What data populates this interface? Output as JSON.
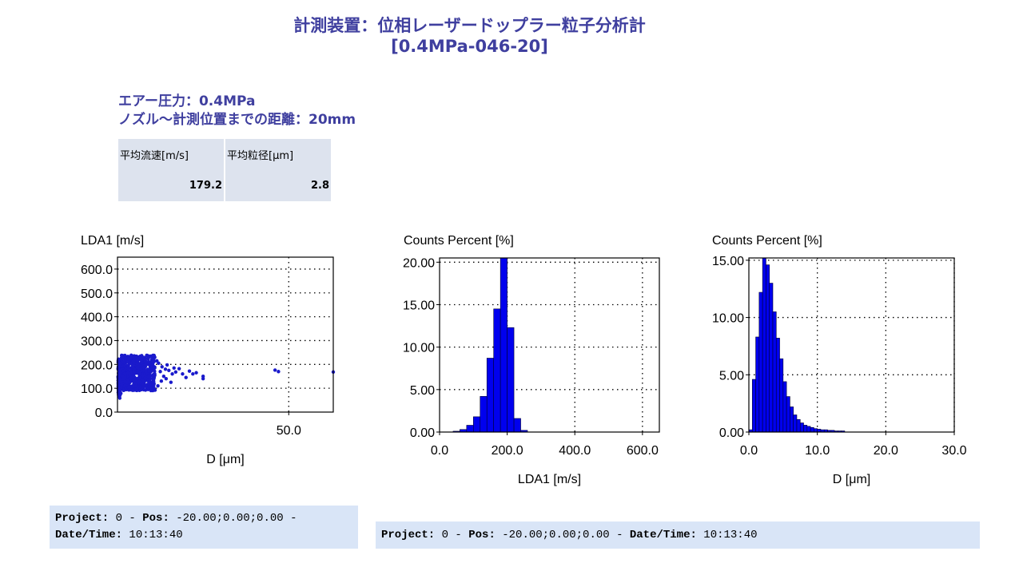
{
  "header": {
    "title_line1": "計測装置：位相レーザードップラー粒子分析計",
    "title_line2": "[0.4MPa-046-20]"
  },
  "conditions": {
    "air_pressure": "エアー圧力：0.4MPa",
    "distance": "ノズル〜計測位置までの距離：20mm"
  },
  "summary_table": {
    "headers": [
      "平均流速[m/s]",
      "平均粒径[μm]"
    ],
    "values": [
      "179.2",
      "2.8"
    ]
  },
  "chart_data": [
    {
      "type": "scatter",
      "ylabel": "LDA1 [m/s]",
      "xlabel": "D [μm]",
      "xlim": [
        0,
        63
      ],
      "ylim": [
        0,
        650
      ],
      "xticks": [
        50
      ],
      "xtick_labels": [
        "50.0"
      ],
      "yticks": [
        0,
        100,
        200,
        300,
        400,
        500,
        600
      ],
      "ytick_labels": [
        "0.0",
        "100.0",
        "200.0",
        "300.0",
        "400.0",
        "500.0",
        "600.0"
      ],
      "grid": true,
      "color": "#1a1acc",
      "cluster": {
        "x_range": [
          0.2,
          11
        ],
        "y_range": [
          60,
          240
        ]
      },
      "points": [
        [
          12,
          205
        ],
        [
          13,
          190
        ],
        [
          14,
          180
        ],
        [
          15,
          175
        ],
        [
          16,
          160
        ],
        [
          12.5,
          170
        ],
        [
          17,
          168
        ],
        [
          18,
          182
        ],
        [
          19,
          160
        ],
        [
          21,
          172
        ],
        [
          22,
          160
        ],
        [
          23,
          165
        ],
        [
          25,
          150
        ],
        [
          25,
          140
        ],
        [
          20,
          145
        ],
        [
          11.5,
          215
        ],
        [
          13.5,
          150
        ],
        [
          14.5,
          198
        ],
        [
          16.5,
          185
        ],
        [
          12.8,
          130
        ],
        [
          14.2,
          140
        ],
        [
          15.6,
          125
        ],
        [
          11.8,
          110
        ],
        [
          46,
          176
        ],
        [
          47,
          170
        ],
        [
          63,
          168
        ]
      ]
    },
    {
      "type": "bar",
      "ylabel": "Counts Percent [%]",
      "xlabel": "LDA1 [m/s]",
      "xlim": [
        0,
        650
      ],
      "ylim": [
        0,
        20.5
      ],
      "xticks": [
        0,
        200,
        400,
        600
      ],
      "xtick_labels": [
        "0.0",
        "200.0",
        "400.0",
        "600.0"
      ],
      "yticks": [
        0,
        5,
        10,
        15,
        20
      ],
      "ytick_labels": [
        "0.00",
        "5.00",
        "10.00",
        "15.00",
        "20.00"
      ],
      "grid": true,
      "bin_width": 20,
      "bin_starts": [
        40,
        60,
        80,
        100,
        120,
        140,
        160,
        180,
        200,
        220,
        240
      ],
      "values": [
        0.1,
        0.3,
        0.8,
        1.8,
        4.2,
        8.7,
        14.5,
        20.5,
        12.3,
        1.6,
        0.2
      ]
    },
    {
      "type": "bar",
      "ylabel": "Counts Percent [%]",
      "xlabel": "D [μm]",
      "xlim": [
        0,
        30
      ],
      "ylim": [
        0,
        15.2
      ],
      "xticks": [
        0,
        10,
        20,
        30
      ],
      "xtick_labels": [
        "0.0",
        "10.0",
        "20.0",
        "30.0"
      ],
      "yticks": [
        0,
        5,
        10,
        15
      ],
      "ytick_labels": [
        "0.00",
        "5.00",
        "10.00",
        "15.00"
      ],
      "grid": true,
      "bin_width": 0.5,
      "bin_starts": [
        0,
        0.5,
        1,
        1.5,
        2,
        2.5,
        3,
        3.5,
        4,
        4.5,
        5,
        5.5,
        6,
        6.5,
        7,
        7.5,
        8,
        8.5,
        9,
        9.5,
        10,
        10.5,
        11,
        11.5,
        12,
        12.5,
        13,
        13.5
      ],
      "values": [
        0.2,
        4.6,
        8.3,
        12.2,
        15.2,
        14.6,
        13.0,
        10.5,
        8.2,
        6.4,
        4.4,
        3.1,
        2.2,
        1.5,
        1.1,
        0.8,
        0.6,
        0.5,
        0.4,
        0.3,
        0.25,
        0.2,
        0.2,
        0.15,
        0.15,
        0.1,
        0.1,
        0.1
      ]
    }
  ],
  "footers": [
    {
      "label_project": "Project:",
      "project": " 0 - ",
      "label_pos": "Pos:",
      "pos": " -20.00;0.00;0.00 -",
      "label_date": "Date/Time:",
      "date": " 10:13:40"
    },
    {
      "label_project": "Project:",
      "project": " 0 - ",
      "label_pos": "Pos:",
      "pos": " -20.00;0.00;0.00 - ",
      "label_date": "Date/Time:",
      "date": " 10:13:40"
    }
  ]
}
